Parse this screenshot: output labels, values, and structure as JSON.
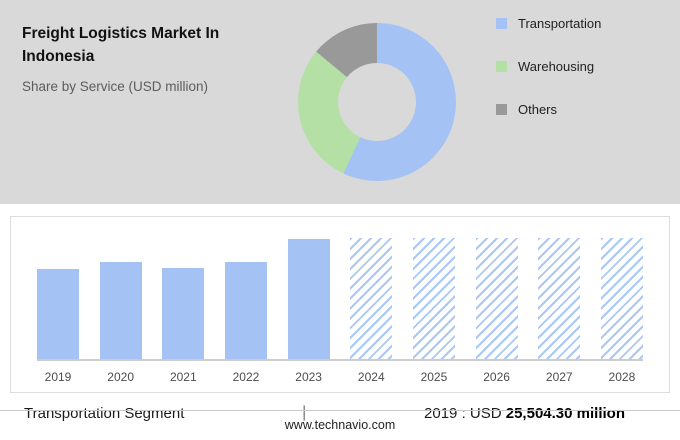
{
  "header": {
    "title": "Freight Logistics Market In Indonesia",
    "subtitle": "Share by Service (USD million)"
  },
  "colors": {
    "hero_bg": "#d9d9d9",
    "bar_blue": "#a4c2f4",
    "pie_green": "#b5e0a5",
    "pie_gray": "#999999"
  },
  "chart_data": [
    {
      "type": "pie",
      "donut": true,
      "title": "Share by Service (USD million)",
      "labels": [
        "Transportation",
        "Warehousing",
        "Others"
      ],
      "values": [
        57,
        29,
        14
      ],
      "colors": [
        "#a4c2f4",
        "#b5e0a5",
        "#999999"
      ],
      "legend_position": "right"
    },
    {
      "type": "bar",
      "categories": [
        "2019",
        "2020",
        "2021",
        "2022",
        "2023",
        "2024",
        "2025",
        "2026",
        "2027",
        "2028"
      ],
      "values": [
        75,
        81,
        76,
        81,
        100,
        101,
        101,
        101,
        101,
        101
      ],
      "styles": [
        "solid",
        "solid",
        "solid",
        "solid",
        "solid",
        "hatched",
        "hatched",
        "hatched",
        "hatched",
        "hatched"
      ],
      "ylim": [
        0,
        105
      ],
      "grid": false,
      "note": "heights are relative; only 2019 value labeled: USD 25,504.30 million; 2024-2028 are hatched forecast bars"
    }
  ],
  "footer": {
    "segment_label": "Transportation Segment",
    "separator": "|",
    "value_prefix": "2019 : USD ",
    "value_bold": "25,504.30 million",
    "website": "www.technavio.com"
  }
}
